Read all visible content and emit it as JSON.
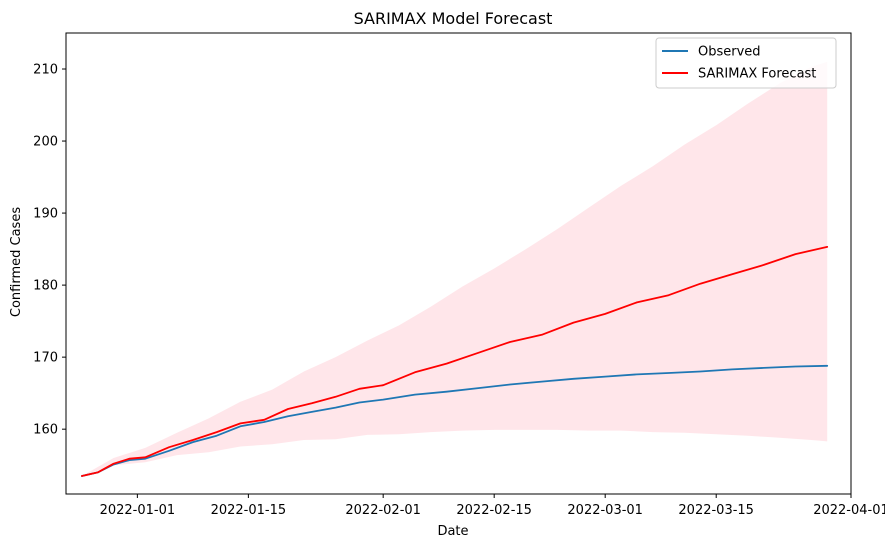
{
  "chart_data": {
    "type": "line",
    "title": "SARIMAX Model Forecast",
    "xlabel": "Date",
    "ylabel": "Confirmed Cases",
    "x_range": [
      "2021-12-23",
      "2022-04-01"
    ],
    "ylim": [
      151,
      215
    ],
    "x_ticks": [
      "2022-01-01",
      "2022-01-15",
      "2022-02-01",
      "2022-02-15",
      "2022-03-01",
      "2022-03-15",
      "2022-04-01"
    ],
    "y_ticks": [
      160,
      170,
      180,
      190,
      200,
      210
    ],
    "legend_position": "top-right",
    "grid": false,
    "series": [
      {
        "name": "Observed",
        "color": "#1f77b4",
        "points": [
          [
            "2021-12-25",
            153.5
          ],
          [
            "2021-12-27",
            154.0
          ],
          [
            "2021-12-29",
            155.1
          ],
          [
            "2021-12-31",
            155.7
          ],
          [
            "2022-01-02",
            155.9
          ],
          [
            "2022-01-05",
            157.0
          ],
          [
            "2022-01-08",
            158.2
          ],
          [
            "2022-01-11",
            159.1
          ],
          [
            "2022-01-14",
            160.4
          ],
          [
            "2022-01-17",
            161.0
          ],
          [
            "2022-01-20",
            161.8
          ],
          [
            "2022-01-23",
            162.4
          ],
          [
            "2022-01-26",
            163.0
          ],
          [
            "2022-01-29",
            163.7
          ],
          [
            "2022-02-01",
            164.1
          ],
          [
            "2022-02-05",
            164.8
          ],
          [
            "2022-02-09",
            165.2
          ],
          [
            "2022-02-13",
            165.7
          ],
          [
            "2022-02-17",
            166.2
          ],
          [
            "2022-02-21",
            166.6
          ],
          [
            "2022-02-25",
            167.0
          ],
          [
            "2022-03-01",
            167.3
          ],
          [
            "2022-03-05",
            167.6
          ],
          [
            "2022-03-09",
            167.8
          ],
          [
            "2022-03-13",
            168.0
          ],
          [
            "2022-03-17",
            168.3
          ],
          [
            "2022-03-21",
            168.5
          ],
          [
            "2022-03-25",
            168.7
          ],
          [
            "2022-03-29",
            168.8
          ]
        ]
      },
      {
        "name": "SARIMAX Forecast",
        "color": "#ff0000",
        "points": [
          [
            "2021-12-25",
            153.5
          ],
          [
            "2021-12-27",
            154.0
          ],
          [
            "2021-12-29",
            155.2
          ],
          [
            "2021-12-31",
            155.9
          ],
          [
            "2022-01-02",
            156.1
          ],
          [
            "2022-01-05",
            157.5
          ],
          [
            "2022-01-08",
            158.5
          ],
          [
            "2022-01-11",
            159.6
          ],
          [
            "2022-01-14",
            160.8
          ],
          [
            "2022-01-17",
            161.3
          ],
          [
            "2022-01-20",
            162.8
          ],
          [
            "2022-01-23",
            163.6
          ],
          [
            "2022-01-26",
            164.5
          ],
          [
            "2022-01-29",
            165.6
          ],
          [
            "2022-02-01",
            166.1
          ],
          [
            "2022-02-05",
            167.9
          ],
          [
            "2022-02-09",
            169.1
          ],
          [
            "2022-02-13",
            170.6
          ],
          [
            "2022-02-17",
            172.1
          ],
          [
            "2022-02-21",
            173.1
          ],
          [
            "2022-02-25",
            174.8
          ],
          [
            "2022-03-01",
            176.0
          ],
          [
            "2022-03-05",
            177.6
          ],
          [
            "2022-03-09",
            178.6
          ],
          [
            "2022-03-13",
            180.2
          ],
          [
            "2022-03-17",
            181.5
          ],
          [
            "2022-03-21",
            182.8
          ],
          [
            "2022-03-25",
            184.3
          ],
          [
            "2022-03-29",
            185.3
          ]
        ]
      }
    ],
    "confidence_band": {
      "color": "#ffc0cb",
      "upper": [
        [
          "2021-12-25",
          153.5
        ],
        [
          "2021-12-29",
          156.0
        ],
        [
          "2022-01-02",
          157.4
        ],
        [
          "2022-01-06",
          159.5
        ],
        [
          "2022-01-10",
          161.5
        ],
        [
          "2022-01-14",
          163.8
        ],
        [
          "2022-01-18",
          165.5
        ],
        [
          "2022-01-22",
          168.0
        ],
        [
          "2022-01-26",
          170.0
        ],
        [
          "2022-01-30",
          172.3
        ],
        [
          "2022-02-03",
          174.4
        ],
        [
          "2022-02-07",
          177.0
        ],
        [
          "2022-02-11",
          179.8
        ],
        [
          "2022-02-15",
          182.3
        ],
        [
          "2022-02-19",
          185.0
        ],
        [
          "2022-02-23",
          187.8
        ],
        [
          "2022-02-27",
          190.8
        ],
        [
          "2022-03-03",
          193.8
        ],
        [
          "2022-03-07",
          196.5
        ],
        [
          "2022-03-11",
          199.5
        ],
        [
          "2022-03-15",
          202.2
        ],
        [
          "2022-03-19",
          205.2
        ],
        [
          "2022-03-23",
          208.0
        ],
        [
          "2022-03-27",
          210.3
        ],
        [
          "2022-03-29",
          211.0
        ]
      ],
      "lower": [
        [
          "2021-12-25",
          153.5
        ],
        [
          "2021-12-29",
          155.0
        ],
        [
          "2022-01-02",
          155.4
        ],
        [
          "2022-01-06",
          156.4
        ],
        [
          "2022-01-10",
          156.8
        ],
        [
          "2022-01-14",
          157.6
        ],
        [
          "2022-01-18",
          157.9
        ],
        [
          "2022-01-22",
          158.5
        ],
        [
          "2022-01-26",
          158.6
        ],
        [
          "2022-01-30",
          159.2
        ],
        [
          "2022-02-03",
          159.3
        ],
        [
          "2022-02-07",
          159.6
        ],
        [
          "2022-02-11",
          159.8
        ],
        [
          "2022-02-15",
          159.9
        ],
        [
          "2022-02-19",
          159.9
        ],
        [
          "2022-02-23",
          159.9
        ],
        [
          "2022-02-27",
          159.8
        ],
        [
          "2022-03-03",
          159.8
        ],
        [
          "2022-03-07",
          159.6
        ],
        [
          "2022-03-11",
          159.5
        ],
        [
          "2022-03-15",
          159.3
        ],
        [
          "2022-03-19",
          159.1
        ],
        [
          "2022-03-23",
          158.8
        ],
        [
          "2022-03-27",
          158.5
        ],
        [
          "2022-03-29",
          158.3
        ]
      ]
    }
  }
}
